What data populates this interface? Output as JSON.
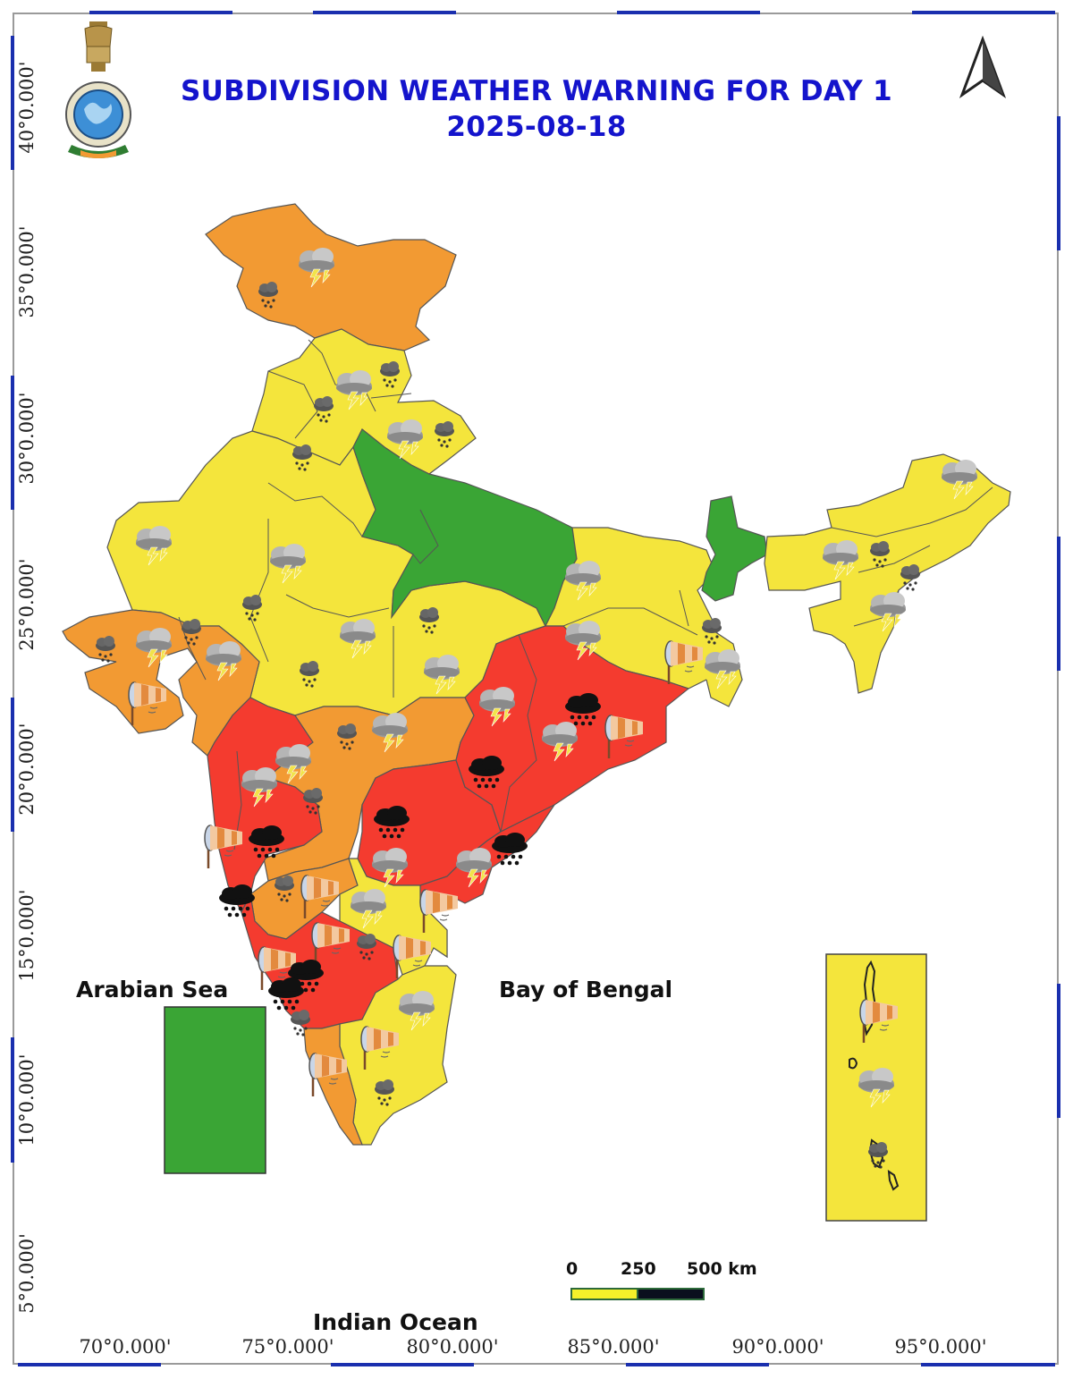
{
  "title": {
    "line1": "SUBDIVISION WEATHER WARNING FOR DAY 1",
    "line2": "2025-08-18"
  },
  "labels": {
    "arabian_sea": "Arabian Sea",
    "bay_of_bengal": "Bay of Bengal",
    "indian_ocean": "Indian Ocean"
  },
  "longitude_labels": [
    "70°0.000'",
    "75°0.000'",
    "80°0.000'",
    "85°0.000'",
    "90°0.000'",
    "95°0.000'"
  ],
  "latitude_labels": [
    "40°0.000'",
    "35°0.000'",
    "30°0.000'",
    "25°0.000'",
    "20°0.000'",
    "15°0.000'",
    "10°0.000'",
    "5°0.000'"
  ],
  "scale": {
    "zero": "0",
    "mid": "250",
    "end": "500 km"
  },
  "colors": {
    "green": "#3aa535",
    "yellow": "#f4e53c",
    "orange": "#f29a33",
    "red": "#f43b2f",
    "title_blue": "#1414cc"
  },
  "icons": [
    "thunderstorm-lightning-icon",
    "heavy-rain-cloud-icon",
    "windsock-icon",
    "rain-cloud-icon",
    "north-arrow-icon",
    "imd-emblem-icon"
  ]
}
